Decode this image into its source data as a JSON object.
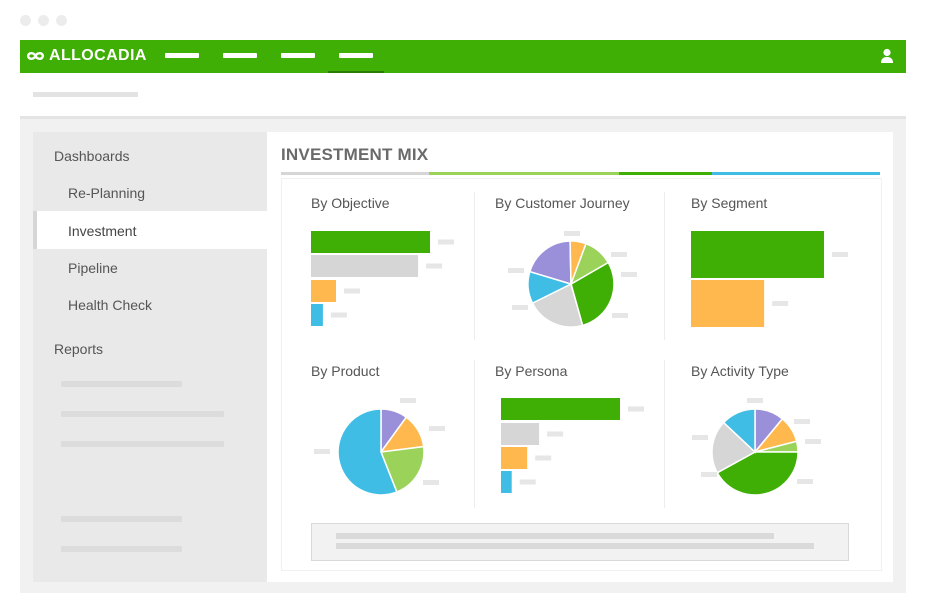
{
  "window": {
    "controls": [
      "close",
      "minimize",
      "maximize"
    ]
  },
  "header": {
    "logo_text": "ALLOCADIA",
    "logo_icon": "allocadia-infinity-icon",
    "user_icon": "user-icon",
    "brand_color": "#3fae05"
  },
  "sidebar": {
    "section_dashboards": "Dashboards",
    "items": [
      {
        "label": "Re-Planning"
      },
      {
        "label": "Investment",
        "active": true
      },
      {
        "label": "Pipeline"
      },
      {
        "label": "Health Check"
      }
    ],
    "section_reports": "Reports"
  },
  "main": {
    "title": "INVESTMENT MIX",
    "title_rule_colors": [
      "#d6d6d6",
      "#9bd35a",
      "#3fae05",
      "#40bde5"
    ],
    "panels": [
      {
        "title": "By Objective"
      },
      {
        "title": "By Customer Journey"
      },
      {
        "title": "By Segment"
      },
      {
        "title": "By Product"
      },
      {
        "title": "By Persona"
      },
      {
        "title": "By Activity Type"
      }
    ]
  },
  "colors": {
    "green": "#3fae05",
    "light_green": "#9bd35a",
    "gray": "#d6d6d6",
    "orange": "#ffb84d",
    "cyan": "#40bde5",
    "purple": "#9a8fd9"
  },
  "chart_data": [
    {
      "type": "bar",
      "orientation": "horizontal",
      "name": "By Objective",
      "values": [
        100,
        90,
        21,
        10
      ],
      "colors": [
        "#3fae05",
        "#d6d6d6",
        "#ffb84d",
        "#40bde5"
      ]
    },
    {
      "type": "pie",
      "name": "By Customer Journey",
      "values": [
        29,
        22,
        12,
        20,
        6,
        11
      ],
      "colors": [
        "#3fae05",
        "#d6d6d6",
        "#40bde5",
        "#9a8fd9",
        "#ffb84d",
        "#9bd35a"
      ]
    },
    {
      "type": "bar",
      "orientation": "horizontal",
      "name": "By Segment",
      "values": [
        100,
        55
      ],
      "colors": [
        "#3fae05",
        "#ffb84d"
      ]
    },
    {
      "type": "pie",
      "name": "By Product",
      "values": [
        10,
        13,
        21,
        56
      ],
      "colors": [
        "#9a8fd9",
        "#ffb84d",
        "#9bd35a",
        "#40bde5"
      ]
    },
    {
      "type": "bar",
      "orientation": "horizontal",
      "name": "By Persona",
      "values": [
        100,
        32,
        22,
        9
      ],
      "colors": [
        "#3fae05",
        "#d6d6d6",
        "#ffb84d",
        "#40bde5"
      ]
    },
    {
      "type": "pie",
      "name": "By Activity Type",
      "values": [
        11,
        10,
        4,
        42,
        20,
        13
      ],
      "colors": [
        "#9a8fd9",
        "#ffb84d",
        "#9bd35a",
        "#3fae05",
        "#d6d6d6",
        "#40bde5"
      ]
    }
  ]
}
